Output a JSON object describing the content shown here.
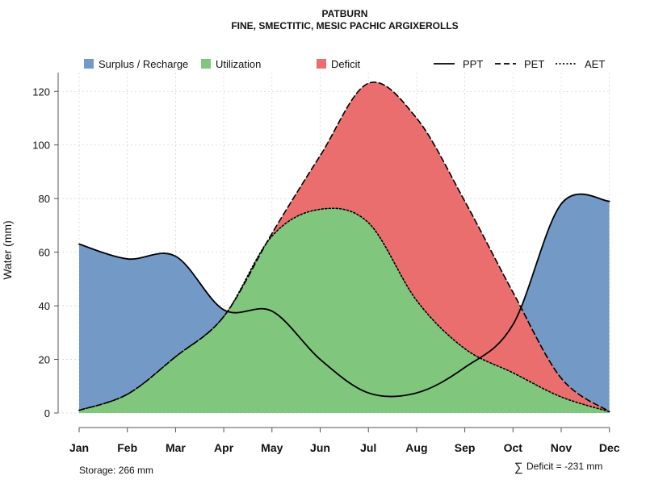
{
  "colors": {
    "surplus": "#7399C6",
    "utilization": "#80C67C",
    "deficit": "#EB6E6E",
    "line": "#000000"
  },
  "chart_data": {
    "type": "area",
    "title": "PATBURN",
    "subtitle": "FINE, SMECTITIC, MESIC PACHIC ARGIXEROLLS",
    "xlabel": "",
    "ylabel": "Water (mm)",
    "ylim": [
      0,
      127
    ],
    "yticks": [
      0,
      20,
      40,
      60,
      80,
      100,
      120
    ],
    "categories": [
      "Jan",
      "Feb",
      "Mar",
      "Apr",
      "May",
      "Jun",
      "Jul",
      "Aug",
      "Sep",
      "Oct",
      "Nov",
      "Dec"
    ],
    "series": [
      {
        "name": "PPT",
        "style": "solid",
        "values": [
          63,
          57.5,
          58.5,
          38.5,
          38,
          20,
          7.5,
          7.5,
          17,
          33,
          78,
          79
        ]
      },
      {
        "name": "PET",
        "style": "dashed",
        "values": [
          1,
          7,
          21,
          36,
          67,
          96,
          123,
          110,
          79,
          45,
          13,
          0.5
        ]
      },
      {
        "name": "AET",
        "style": "dotted",
        "values": [
          1,
          7,
          21,
          36,
          66,
          76,
          71,
          42,
          24,
          15,
          6,
          0.5
        ]
      }
    ],
    "areas": [
      {
        "name": "Surplus / Recharge",
        "between": [
          "PPT",
          "PET"
        ],
        "where": "PPT above PET"
      },
      {
        "name": "Utilization",
        "between": [
          "AET",
          "zero"
        ]
      },
      {
        "name": "Deficit",
        "between": [
          "PET",
          "AET"
        ]
      }
    ],
    "legend": {
      "position": "top",
      "fill_items": [
        "Surplus / Recharge",
        "Utilization",
        "Deficit"
      ],
      "line_items": [
        "PPT",
        "PET",
        "AET"
      ]
    },
    "storage_text": "Storage: 266 mm",
    "deficit_text": "Deficit = -231 mm",
    "deficit_symbol": "∑"
  }
}
